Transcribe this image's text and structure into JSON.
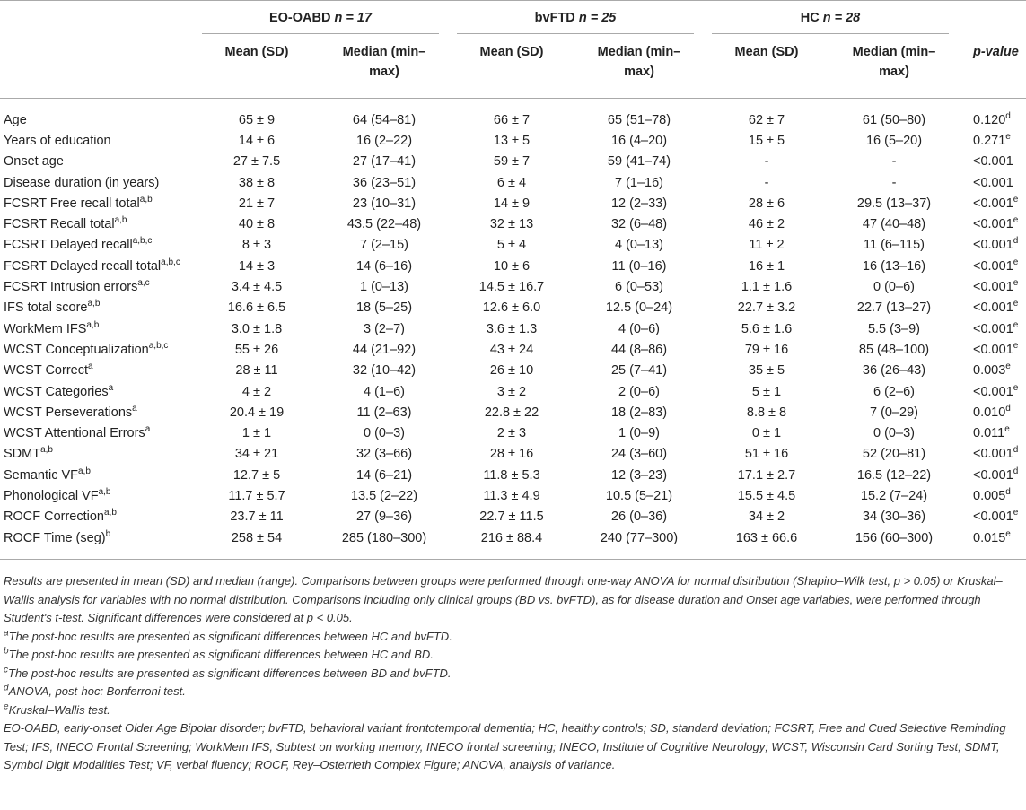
{
  "table": {
    "groups": [
      {
        "name": "EO-OABD",
        "n_label": "n = 17"
      },
      {
        "name": "bvFTD",
        "n_label": "n = 25"
      },
      {
        "name": "HC",
        "n_label": "n = 28"
      }
    ],
    "subheaders": [
      "Mean (SD)",
      "Median (min–max)",
      "Mean (SD)",
      "Median (min–max)",
      "Mean (SD)",
      "Median (min–max)"
    ],
    "p_header": "p-value",
    "rows": [
      {
        "label": "Age",
        "sup": "",
        "cells": [
          "65 ± 9",
          "64 (54–81)",
          "66 ± 7",
          "65 (51–78)",
          "62 ± 7",
          "61 (50–80)"
        ],
        "p": "0.120",
        "p_sup": "d"
      },
      {
        "label": "Years of education",
        "sup": "",
        "cells": [
          "14 ± 6",
          "16 (2–22)",
          "13 ± 5",
          "16 (4–20)",
          "15 ± 5",
          "16 (5–20)"
        ],
        "p": "0.271",
        "p_sup": "e"
      },
      {
        "label": "Onset age",
        "sup": "",
        "cells": [
          "27 ± 7.5",
          "27 (17–41)",
          "59 ± 7",
          "59 (41–74)",
          "-",
          "-"
        ],
        "p": "<0.001",
        "p_sup": ""
      },
      {
        "label": "Disease duration (in years)",
        "sup": "",
        "cells": [
          "38 ± 8",
          "36 (23–51)",
          "6 ± 4",
          "7 (1–16)",
          "-",
          "-"
        ],
        "p": "<0.001",
        "p_sup": ""
      },
      {
        "label": "FCSRT Free recall total",
        "sup": "a,b",
        "cells": [
          "21 ± 7",
          "23 (10–31)",
          "14 ± 9",
          "12 (2–33)",
          "28 ± 6",
          "29.5 (13–37)"
        ],
        "p": "<0.001",
        "p_sup": "e"
      },
      {
        "label": "FCSRT Recall total",
        "sup": "a,b",
        "cells": [
          "40 ± 8",
          "43.5 (22–48)",
          "32 ± 13",
          "32 (6–48)",
          "46 ± 2",
          "47 (40–48)"
        ],
        "p": "<0.001",
        "p_sup": "e"
      },
      {
        "label": "FCSRT Delayed recall",
        "sup": "a,b,c",
        "cells": [
          "8 ± 3",
          "7 (2–15)",
          "5 ± 4",
          "4 (0–13)",
          "11 ± 2",
          "11 (6–115)"
        ],
        "p": "<0.001",
        "p_sup": "d"
      },
      {
        "label": "FCSRT Delayed recall total",
        "sup": "a,b,c",
        "cells": [
          "14 ± 3",
          "14 (6–16)",
          "10 ± 6",
          "11 (0–16)",
          "16 ± 1",
          "16 (13–16)"
        ],
        "p": "<0.001",
        "p_sup": "e"
      },
      {
        "label": "FCSRT Intrusion errors",
        "sup": "a,c",
        "cells": [
          "3.4 ± 4.5",
          "1 (0–13)",
          "14.5 ± 16.7",
          "6 (0–53)",
          "1.1 ± 1.6",
          "0 (0–6)"
        ],
        "p": "<0.001",
        "p_sup": "e"
      },
      {
        "label": "IFS total score",
        "sup": "a,b",
        "cells": [
          "16.6 ± 6.5",
          "18 (5–25)",
          "12.6 ± 6.0",
          "12.5 (0–24)",
          "22.7 ± 3.2",
          "22.7 (13–27)"
        ],
        "p": "<0.001",
        "p_sup": "e"
      },
      {
        "label": "WorkMem IFS",
        "sup": "a,b",
        "cells": [
          "3.0 ± 1.8",
          "3 (2–7)",
          "3.6 ± 1.3",
          "4 (0–6)",
          "5.6 ± 1.6",
          "5.5 (3–9)"
        ],
        "p": "<0.001",
        "p_sup": "e"
      },
      {
        "label": "WCST Conceptualization",
        "sup": "a,b,c",
        "cells": [
          "55 ± 26",
          "44 (21–92)",
          "43 ± 24",
          "44 (8–86)",
          "79 ± 16",
          "85 (48–100)"
        ],
        "p": "<0.001",
        "p_sup": "e"
      },
      {
        "label": "WCST Correct",
        "sup": "a",
        "cells": [
          "28 ± 11",
          "32 (10–42)",
          "26 ± 10",
          "25 (7–41)",
          "35 ± 5",
          "36 (26–43)"
        ],
        "p": "0.003",
        "p_sup": "e"
      },
      {
        "label": "WCST Categories",
        "sup": "a",
        "cells": [
          "4 ± 2",
          "4 (1–6)",
          "3 ± 2",
          "2 (0–6)",
          "5 ± 1",
          "6 (2–6)"
        ],
        "p": "<0.001",
        "p_sup": "e"
      },
      {
        "label": "WCST Perseverations",
        "sup": "a",
        "cells": [
          "20.4 ± 19",
          "11 (2–63)",
          "22.8 ± 22",
          "18 (2–83)",
          "8.8 ± 8",
          "7 (0–29)"
        ],
        "p": "0.010",
        "p_sup": "d"
      },
      {
        "label": "WCST Attentional Errors",
        "sup": "a",
        "cells": [
          "1 ± 1",
          "0 (0–3)",
          "2 ± 3",
          "1 (0–9)",
          "0 ± 1",
          "0 (0–3)"
        ],
        "p": "0.011",
        "p_sup": "e"
      },
      {
        "label": "SDMT",
        "sup": "a,b",
        "cells": [
          "34 ± 21",
          "32 (3–66)",
          "28 ± 16",
          "24 (3–60)",
          "51 ± 16",
          "52 (20–81)"
        ],
        "p": "<0.001",
        "p_sup": "d"
      },
      {
        "label": "Semantic VF",
        "sup": "a,b",
        "cells": [
          "12.7 ± 5",
          "14 (6–21)",
          "11.8 ± 5.3",
          "12 (3–23)",
          "17.1 ± 2.7",
          "16.5 (12–22)"
        ],
        "p": "<0.001",
        "p_sup": "d"
      },
      {
        "label": "Phonological VF",
        "sup": "a,b",
        "cells": [
          "11.7 ± 5.7",
          "13.5 (2–22)",
          "11.3 ± 4.9",
          "10.5 (5–21)",
          "15.5 ± 4.5",
          "15.2 (7–24)"
        ],
        "p": "0.005",
        "p_sup": "d"
      },
      {
        "label": "ROCF Correction",
        "sup": "a,b",
        "cells": [
          "23.7 ± 11",
          "27 (9–36)",
          "22.7 ± 11.5",
          "26 (0–36)",
          "34 ± 2",
          "34 (30–36)"
        ],
        "p": "<0.001",
        "p_sup": "e"
      },
      {
        "label": "ROCF Time (seg)",
        "sup": "b",
        "cells": [
          "258 ± 54",
          "285 (180–300)",
          "216 ± 88.4",
          "240 (77–300)",
          "163 ± 66.6",
          "156 (60–300)"
        ],
        "p": "0.015",
        "p_sup": "e"
      }
    ]
  },
  "footnotes": {
    "main": "Results are presented in mean (SD) and median (range). Comparisons between groups were performed through one-way ANOVA for normal distribution (Shapiro–Wilk test, p > 0.05) or Kruskal–Wallis analysis for variables with no normal distribution. Comparisons including only clinical groups (BD vs. bvFTD), as for disease duration and Onset age variables, were performed through Student's t-test. Significant differences were considered at p < 0.05.",
    "notes": [
      {
        "sup": "a",
        "text": "The post-hoc results are presented as significant differences between HC and bvFTD."
      },
      {
        "sup": "b",
        "text": "The post-hoc results are presented as significant differences between HC and BD."
      },
      {
        "sup": "c",
        "text": "The post-hoc results are presented as significant differences between BD and bvFTD."
      },
      {
        "sup": "d",
        "text": "ANOVA, post-hoc: Bonferroni test."
      },
      {
        "sup": "e",
        "text": "Kruskal–Wallis test."
      }
    ],
    "abbreviations": "EO-OABD, early-onset Older Age Bipolar disorder; bvFTD, behavioral variant frontotemporal dementia; HC, healthy controls; SD, standard deviation; FCSRT, Free and Cued Selective Reminding Test; IFS, INECO Frontal Screening; WorkMem IFS, Subtest on working memory, INECO frontal screening; INECO, Institute of Cognitive Neurology; WCST, Wisconsin Card Sorting Test; SDMT, Symbol Digit Modalities Test; VF, verbal fluency; ROCF, Rey–Osterrieth Complex Figure; ANOVA, analysis of variance."
  }
}
